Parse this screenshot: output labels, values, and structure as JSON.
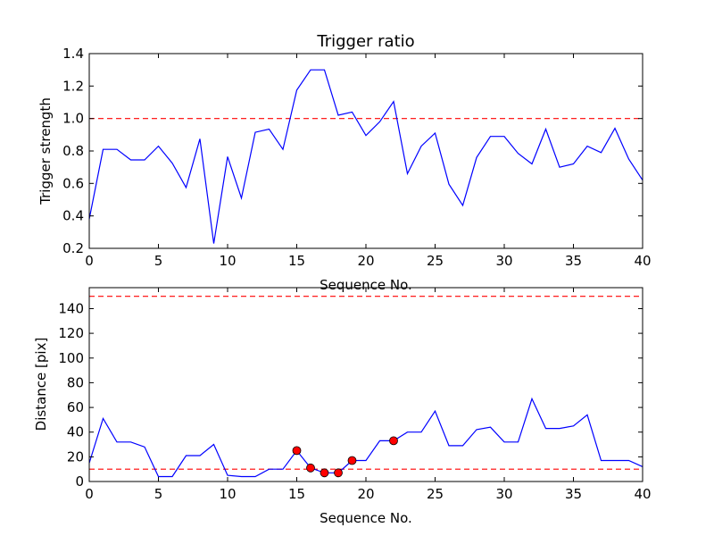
{
  "chart_data": [
    {
      "type": "line",
      "title": "Trigger ratio",
      "xlabel": "Sequence No.",
      "ylabel": "Trigger strength",
      "xlim": [
        0,
        40
      ],
      "ylim": [
        0.2,
        1.4
      ],
      "xticks": [
        0,
        5,
        10,
        15,
        20,
        25,
        30,
        35,
        40
      ],
      "yticks": [
        0.2,
        0.4,
        0.6,
        0.8,
        1.0,
        1.2,
        1.4
      ],
      "ytick_labels": [
        "0.2",
        "0.4",
        "0.6",
        "0.8",
        "1.0",
        "1.2",
        "1.4"
      ],
      "grid": false,
      "series": [
        {
          "color": "#0000ff",
          "x": [
            0,
            1,
            2,
            3,
            4,
            5,
            6,
            7,
            8,
            9,
            10,
            11,
            12,
            13,
            14,
            15,
            16,
            17,
            18,
            19,
            20,
            21,
            22,
            23,
            24,
            25,
            26,
            27,
            28,
            29,
            30,
            31,
            32,
            33,
            34,
            35,
            36,
            37,
            38,
            39,
            40
          ],
          "y": [
            0.38,
            0.81,
            0.81,
            0.745,
            0.745,
            0.83,
            0.725,
            0.575,
            0.875,
            0.23,
            0.765,
            0.51,
            0.915,
            0.935,
            0.81,
            1.175,
            1.3,
            1.3,
            1.02,
            1.04,
            0.895,
            0.98,
            1.105,
            0.66,
            0.83,
            0.91,
            0.595,
            0.465,
            0.76,
            0.89,
            0.89,
            0.785,
            0.72,
            0.935,
            0.7,
            0.72,
            0.83,
            0.79,
            0.94,
            0.75,
            0.62
          ]
        }
      ],
      "reference_lines": [
        {
          "y": 1.0,
          "color": "#ff0000",
          "style": "dashed"
        }
      ]
    },
    {
      "type": "line",
      "title": "",
      "xlabel": "Sequence No.",
      "ylabel": "Distance [pix]",
      "xlim": [
        0,
        40
      ],
      "ylim": [
        0,
        157
      ],
      "xticks": [
        0,
        5,
        10,
        15,
        20,
        25,
        30,
        35,
        40
      ],
      "yticks": [
        0,
        20,
        40,
        60,
        80,
        100,
        120,
        140
      ],
      "ytick_labels": [
        "0",
        "20",
        "40",
        "60",
        "80",
        "100",
        "120",
        "140"
      ],
      "grid": false,
      "series": [
        {
          "color": "#0000ff",
          "x": [
            0,
            1,
            2,
            3,
            4,
            5,
            6,
            7,
            8,
            9,
            10,
            11,
            12,
            13,
            14,
            15,
            16,
            17,
            18,
            19,
            20,
            21,
            22,
            23,
            24,
            25,
            26,
            27,
            28,
            29,
            30,
            31,
            32,
            33,
            34,
            35,
            36,
            37,
            38,
            39,
            40
          ],
          "y": [
            15,
            51,
            32,
            32,
            28,
            4,
            4,
            21,
            21,
            30,
            5,
            4,
            4,
            10,
            10,
            25,
            11,
            7,
            7,
            17,
            17,
            33,
            33,
            40,
            40,
            57,
            29,
            29,
            42,
            44,
            32,
            32,
            67,
            43,
            43,
            45,
            54,
            17,
            17,
            17,
            12
          ]
        }
      ],
      "markers": {
        "color": "#ff0000",
        "x": [
          15,
          16,
          17,
          18,
          19,
          22
        ],
        "y": [
          25,
          11,
          7,
          7,
          17,
          33
        ]
      },
      "reference_lines": [
        {
          "y": 150,
          "color": "#ff0000",
          "style": "dashed"
        },
        {
          "y": 10,
          "color": "#ff0000",
          "style": "dashed"
        }
      ]
    }
  ]
}
